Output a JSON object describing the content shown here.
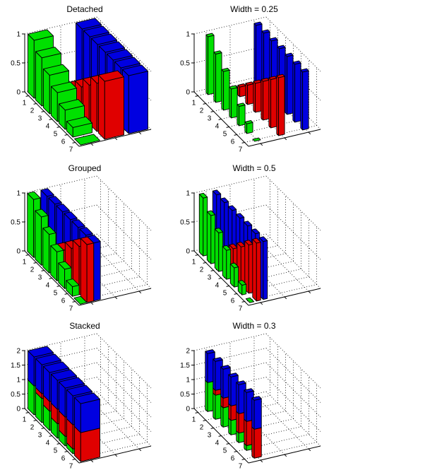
{
  "figure": {
    "background": "#ffffff"
  },
  "chart_data": [
    {
      "type": "bar3",
      "style": "detached",
      "title": "Detached",
      "bar_width": 0.8,
      "categories": [
        "1",
        "2",
        "3",
        "4",
        "5",
        "6",
        "7"
      ],
      "zticks": [
        0,
        0.5,
        1
      ],
      "zmax": 1,
      "grid": true,
      "series": [
        {
          "name": "green",
          "color": "#00e000",
          "values": [
            1,
            0.8333,
            0.6667,
            0.5,
            0.3333,
            0.1667,
            0
          ]
        },
        {
          "name": "red",
          "color": "#e00000",
          "values": [
            0,
            0.1667,
            0.3333,
            0.5,
            0.6667,
            0.8333,
            1
          ]
        },
        {
          "name": "blue",
          "color": "#0000e0",
          "values": [
            1,
            1,
            1,
            1,
            1,
            1,
            1
          ]
        }
      ]
    },
    {
      "type": "bar3",
      "style": "detached",
      "title": "Width = 0.25",
      "bar_width": 0.25,
      "categories": [
        "1",
        "2",
        "3",
        "4",
        "5",
        "6",
        "7"
      ],
      "zticks": [
        0,
        0.5,
        1
      ],
      "zmax": 1,
      "grid": true,
      "series": [
        {
          "name": "green",
          "color": "#00e000",
          "values": [
            1,
            0.8333,
            0.6667,
            0.5,
            0.3333,
            0.1667,
            0
          ]
        },
        {
          "name": "red",
          "color": "#e00000",
          "values": [
            0,
            0.1667,
            0.3333,
            0.5,
            0.6667,
            0.8333,
            1
          ]
        },
        {
          "name": "blue",
          "color": "#0000e0",
          "values": [
            1,
            1,
            1,
            1,
            1,
            1,
            1
          ]
        }
      ]
    },
    {
      "type": "bar3",
      "style": "grouped",
      "title": "Grouped",
      "bar_width": 0.8,
      "categories": [
        "1",
        "2",
        "3",
        "4",
        "5",
        "6",
        "7"
      ],
      "zticks": [
        0,
        0.5,
        1
      ],
      "zmax": 1,
      "grid": true,
      "series": [
        {
          "name": "green",
          "color": "#00e000",
          "values": [
            1,
            0.8333,
            0.6667,
            0.5,
            0.3333,
            0.1667,
            0
          ]
        },
        {
          "name": "red",
          "color": "#e00000",
          "values": [
            0,
            0.1667,
            0.3333,
            0.5,
            0.6667,
            0.8333,
            1
          ]
        },
        {
          "name": "blue",
          "color": "#0000e0",
          "values": [
            1,
            1,
            1,
            1,
            1,
            1,
            1
          ]
        }
      ]
    },
    {
      "type": "bar3",
      "style": "grouped",
      "title": "Width = 0.5",
      "bar_width": 0.5,
      "categories": [
        "1",
        "2",
        "3",
        "4",
        "5",
        "6",
        "7"
      ],
      "zticks": [
        0,
        0.5,
        1
      ],
      "zmax": 1,
      "grid": true,
      "series": [
        {
          "name": "green",
          "color": "#00e000",
          "values": [
            1,
            0.8333,
            0.6667,
            0.5,
            0.3333,
            0.1667,
            0
          ]
        },
        {
          "name": "red",
          "color": "#e00000",
          "values": [
            0,
            0.1667,
            0.3333,
            0.5,
            0.6667,
            0.8333,
            1
          ]
        },
        {
          "name": "blue",
          "color": "#0000e0",
          "values": [
            1,
            1,
            1,
            1,
            1,
            1,
            1
          ]
        }
      ]
    },
    {
      "type": "bar3",
      "style": "stacked",
      "title": "Stacked",
      "bar_width": 0.8,
      "categories": [
        "1",
        "2",
        "3",
        "4",
        "5",
        "6",
        "7"
      ],
      "zticks": [
        0,
        0.5,
        1,
        1.5,
        2
      ],
      "zmax": 2,
      "grid": true,
      "series": [
        {
          "name": "green",
          "color": "#00e000",
          "values": [
            1,
            0.8333,
            0.6667,
            0.5,
            0.3333,
            0.1667,
            0
          ]
        },
        {
          "name": "red",
          "color": "#e00000",
          "values": [
            0,
            0.1667,
            0.3333,
            0.5,
            0.6667,
            0.8333,
            1
          ]
        },
        {
          "name": "blue",
          "color": "#0000e0",
          "values": [
            1,
            1,
            1,
            1,
            1,
            1,
            1
          ]
        }
      ]
    },
    {
      "type": "bar3",
      "style": "stacked",
      "title": "Width = 0.3",
      "bar_width": 0.3,
      "categories": [
        "1",
        "2",
        "3",
        "4",
        "5",
        "6",
        "7"
      ],
      "zticks": [
        0,
        0.5,
        1,
        1.5,
        2
      ],
      "zmax": 2,
      "grid": true,
      "series": [
        {
          "name": "green",
          "color": "#00e000",
          "values": [
            1,
            0.8333,
            0.6667,
            0.5,
            0.3333,
            0.1667,
            0
          ]
        },
        {
          "name": "red",
          "color": "#e00000",
          "values": [
            0,
            0.1667,
            0.3333,
            0.5,
            0.6667,
            0.8333,
            1
          ]
        },
        {
          "name": "blue",
          "color": "#0000e0",
          "values": [
            1,
            1,
            1,
            1,
            1,
            1,
            1
          ]
        }
      ]
    }
  ]
}
